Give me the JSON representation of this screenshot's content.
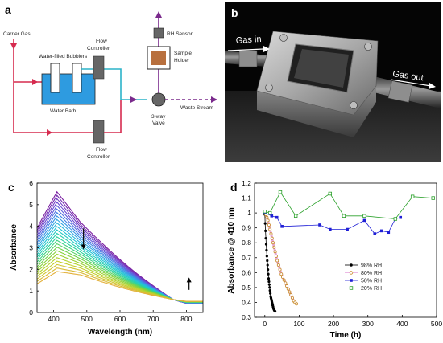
{
  "panels": {
    "a": {
      "letter": "a",
      "labels": {
        "carrier_gas": "Carrier Gas",
        "bubblers": "Water-filled Bubblers",
        "water_bath": "Water Bath",
        "flow_controller_top_1": "Flow",
        "flow_controller_top_2": "Controller",
        "flow_controller_bottom_1": "Flow",
        "flow_controller_bottom_2": "Controller",
        "rh_sensor": "RH Sensor",
        "sample_holder_1": "Sample",
        "sample_holder_2": "Holder",
        "valve_1": "3-way",
        "valve_2": "Valve",
        "waste_stream": "Waste Stream"
      },
      "colors": {
        "line_red": "#d62b4f",
        "line_cyan": "#2bb3c9",
        "line_purple": "#7a2a8c",
        "water": "#2e9be0"
      }
    },
    "b": {
      "letter": "b",
      "gas_in": "Gas in",
      "gas_out": "Gas out"
    },
    "c": {
      "letter": "c"
    },
    "d": {
      "letter": "d"
    }
  },
  "chart_data": [
    {
      "panel": "c",
      "type": "line",
      "title": "",
      "xlabel": "Wavelength (nm)",
      "ylabel": "Absorbance",
      "xlim": [
        350,
        850
      ],
      "ylim": [
        0,
        6
      ],
      "xticks": [
        400,
        500,
        600,
        700,
        800
      ],
      "yticks": [
        0,
        1,
        2,
        3,
        4,
        5,
        6
      ],
      "grid": false,
      "annotations": [
        {
          "type": "arrow",
          "direction": "down",
          "x": 490,
          "y_from": 3.9,
          "y_to": 3.0
        },
        {
          "type": "arrow",
          "direction": "up",
          "x": 808,
          "y_from": 1.05,
          "y_to": 1.55
        }
      ],
      "series_summary": {
        "count": 24,
        "color_gradient": [
          "#7a1fa0",
          "#6a4fd8",
          "#3b8fe8",
          "#22c3d8",
          "#29d39a",
          "#7bd13f",
          "#c2d22c",
          "#e3b03a"
        ],
        "peak_wavelength_nm": 410,
        "peak_absorbance_first": 5.6,
        "peak_absorbance_last": 1.9,
        "shoulder_480_first": 4.2,
        "shoulder_480_last": 1.75,
        "absorbance_at_800_first": 0.42,
        "absorbance_at_800_last": 0.52
      }
    },
    {
      "panel": "d",
      "type": "scatter",
      "title": "",
      "xlabel": "Time (h)",
      "ylabel": "Absorbance @ 410 nm",
      "xlim": [
        -30,
        500
      ],
      "ylim": [
        0.3,
        1.2
      ],
      "xticks": [
        0,
        100,
        200,
        300,
        400,
        500
      ],
      "yticks": [
        0.3,
        0.4,
        0.5,
        0.6,
        0.7,
        0.8,
        0.9,
        1.0,
        1.1,
        1.2
      ],
      "grid": false,
      "legend_position": "right",
      "series": [
        {
          "name": "98% RH",
          "marker": "filled-circle",
          "color": "#000000",
          "x": [
            0,
            1,
            2,
            3,
            4,
            5,
            6,
            7,
            8,
            9,
            10,
            11,
            12,
            13,
            14,
            15,
            16,
            17,
            18,
            19,
            20,
            21,
            22,
            23,
            24,
            25,
            26,
            27,
            28,
            30
          ],
          "y": [
            0.99,
            0.93,
            0.88,
            0.83,
            0.79,
            0.75,
            0.71,
            0.68,
            0.65,
            0.62,
            0.59,
            0.56,
            0.54,
            0.52,
            0.5,
            0.48,
            0.46,
            0.44,
            0.43,
            0.42,
            0.41,
            0.4,
            0.39,
            0.38,
            0.37,
            0.36,
            0.355,
            0.35,
            0.345,
            0.34
          ]
        },
        {
          "name": "80% RH",
          "marker": "open-circle",
          "color": "#c88a2a",
          "x": [
            0,
            3,
            6,
            9,
            12,
            15,
            18,
            21,
            24,
            27,
            30,
            33,
            36,
            40,
            44,
            48,
            52,
            56,
            60,
            64,
            68,
            72,
            76,
            80,
            84,
            88,
            92
          ],
          "y": [
            1.0,
            0.99,
            0.97,
            0.95,
            0.92,
            0.89,
            0.86,
            0.83,
            0.8,
            0.77,
            0.74,
            0.71,
            0.68,
            0.65,
            0.62,
            0.59,
            0.57,
            0.55,
            0.53,
            0.51,
            0.49,
            0.47,
            0.45,
            0.43,
            0.41,
            0.4,
            0.39
          ]
        },
        {
          "name": "50% RH",
          "marker": "filled-square",
          "color": "#1f1fd6",
          "x": [
            0,
            20,
            35,
            50,
            160,
            190,
            240,
            290,
            320,
            340,
            360,
            380,
            395
          ],
          "y": [
            1.0,
            0.98,
            0.97,
            0.91,
            0.92,
            0.89,
            0.89,
            0.95,
            0.86,
            0.88,
            0.87,
            0.96,
            0.97
          ]
        },
        {
          "name": "20% RH",
          "marker": "open-square",
          "color": "#2aa02a",
          "x": [
            0,
            15,
            45,
            90,
            190,
            230,
            290,
            380,
            430,
            490
          ],
          "y": [
            1.01,
            1.0,
            1.14,
            0.98,
            1.13,
            0.98,
            0.98,
            0.96,
            1.11,
            1.1
          ]
        }
      ]
    }
  ]
}
